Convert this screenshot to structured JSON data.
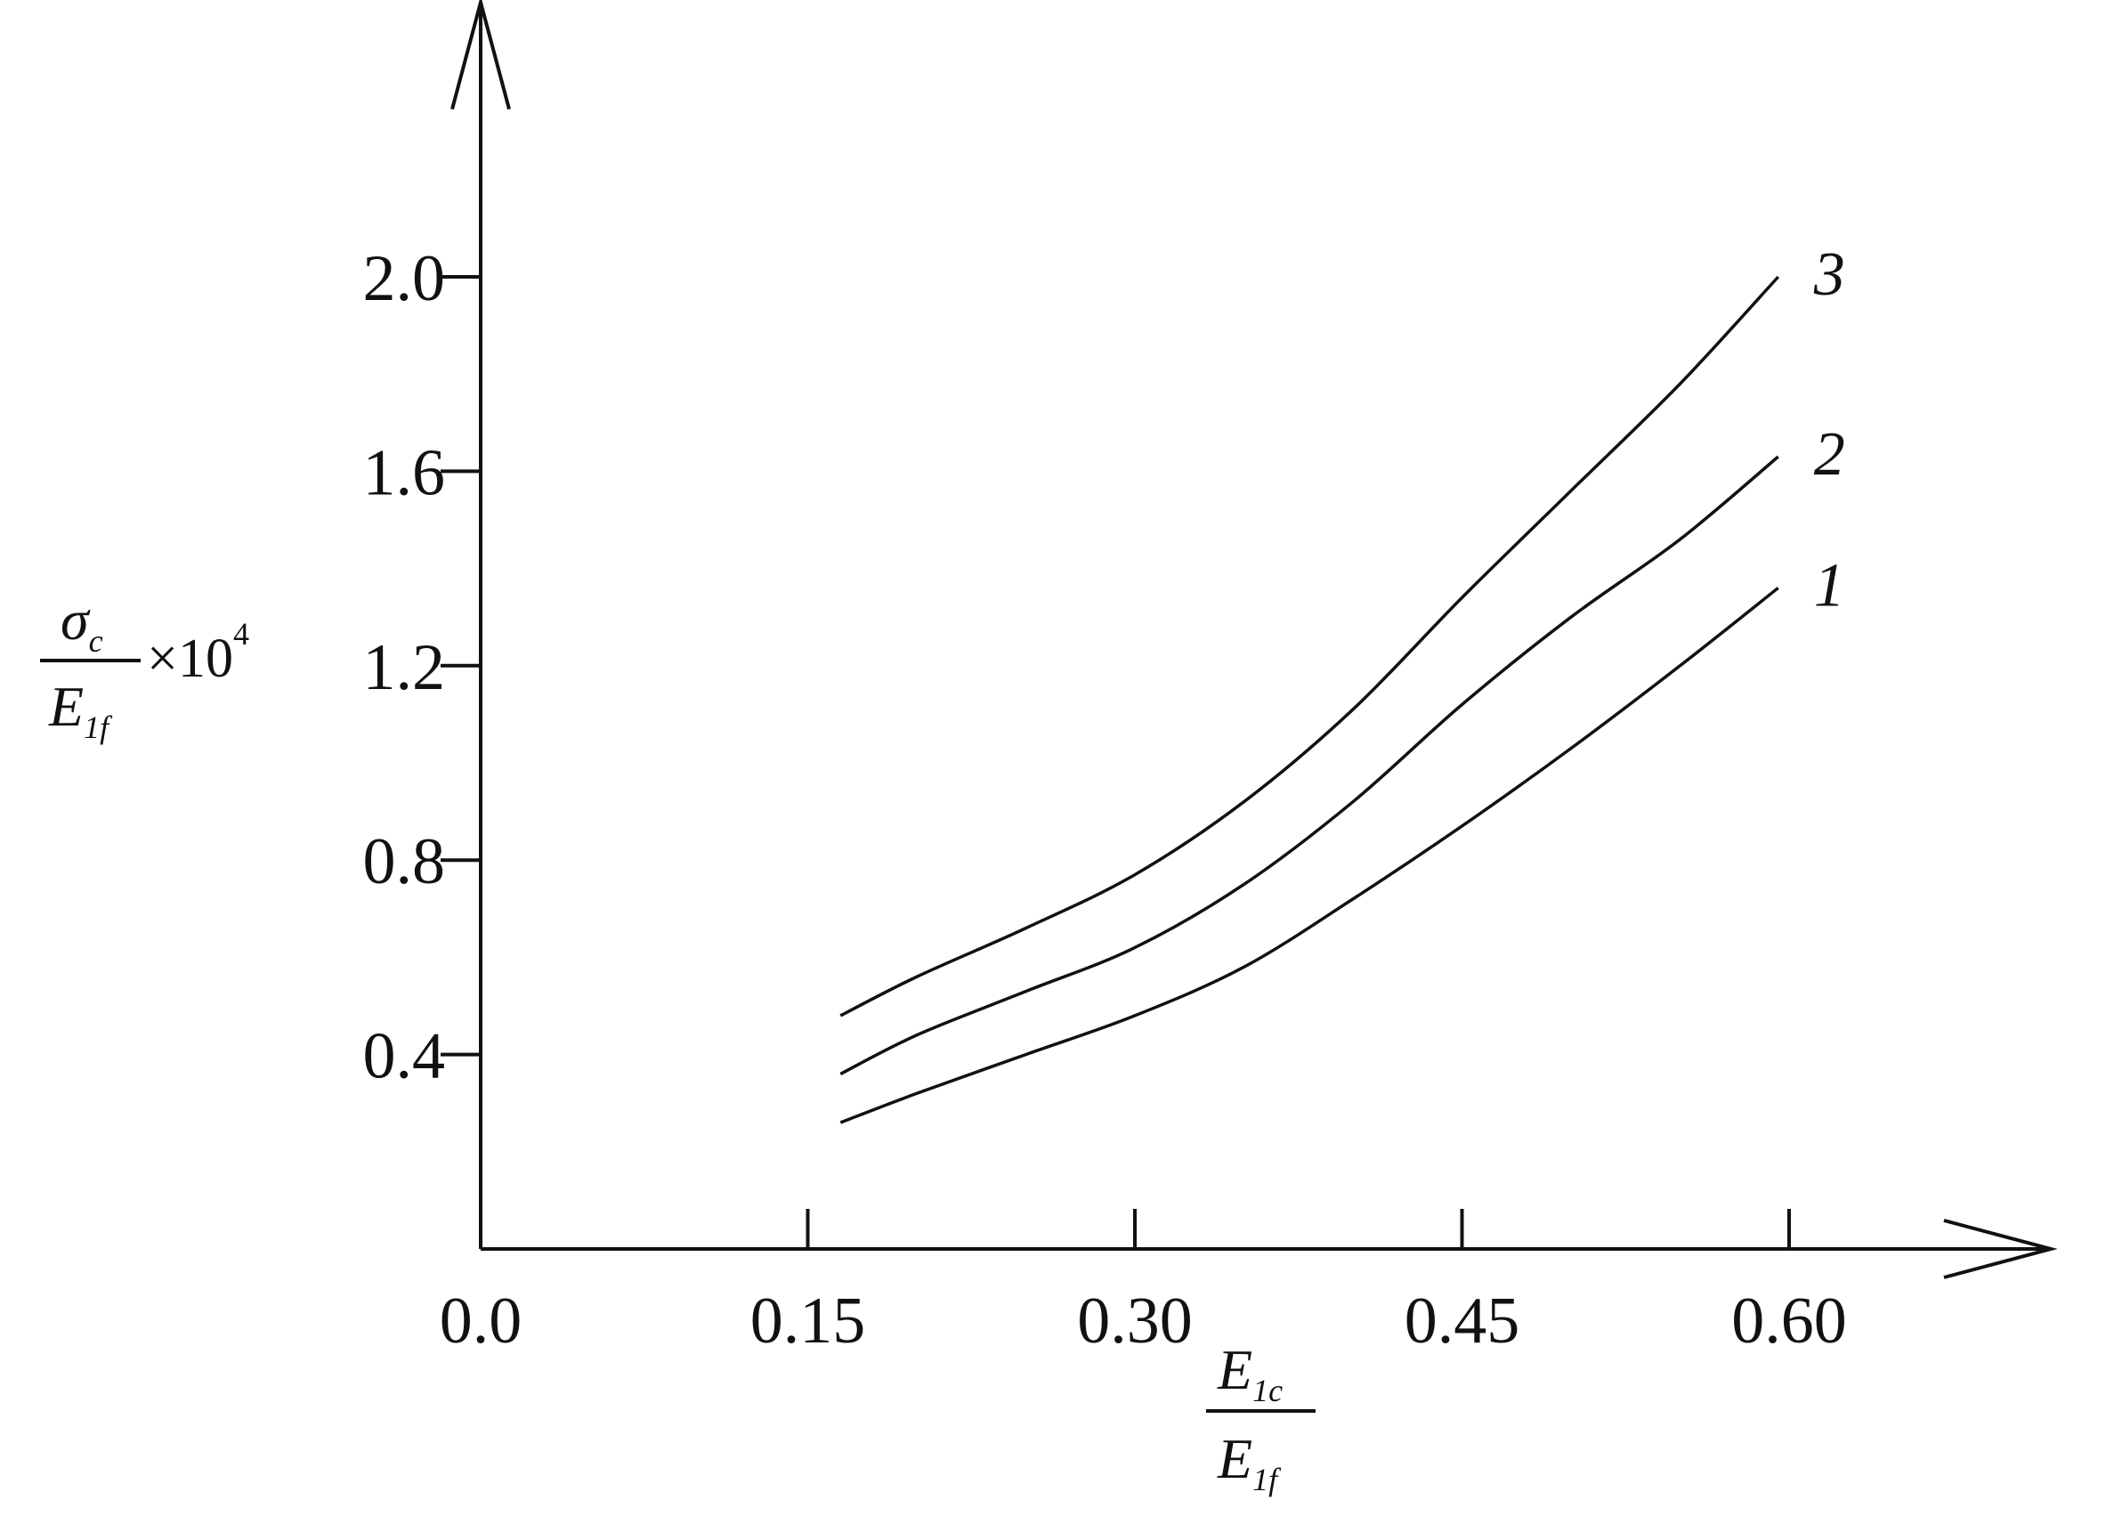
{
  "chart_data": {
    "type": "line",
    "x_ticks": [
      "0.0",
      "0.15",
      "0.30",
      "0.45",
      "0.60"
    ],
    "y_ticks": [
      "0.4",
      "0.8",
      "1.2",
      "1.6",
      "2.0"
    ],
    "x_tick_values": [
      0.0,
      0.15,
      0.3,
      0.45,
      0.6
    ],
    "y_tick_values": [
      0.4,
      0.8,
      1.2,
      1.6,
      2.0
    ],
    "xlim": [
      0.0,
      0.72
    ],
    "ylim": [
      0.0,
      2.4
    ],
    "grid": false,
    "xlabel": {
      "num_main": "E",
      "num_sub": "1c",
      "den_main": "E",
      "den_sub": "1f"
    },
    "ylabel": {
      "num_main": "σ",
      "num_sub": "c",
      "den_main": "E",
      "den_sub": "1f",
      "times": "×10",
      "exponent": "4"
    },
    "x": [
      0.165,
      0.2,
      0.25,
      0.3,
      0.35,
      0.4,
      0.45,
      0.5,
      0.55,
      0.595
    ],
    "series": [
      {
        "label": "1",
        "values": [
          0.26,
          0.32,
          0.4,
          0.48,
          0.58,
          0.72,
          0.87,
          1.03,
          1.2,
          1.36
        ]
      },
      {
        "label": "2",
        "values": [
          0.36,
          0.44,
          0.53,
          0.62,
          0.75,
          0.92,
          1.12,
          1.3,
          1.46,
          1.63
        ]
      },
      {
        "label": "3",
        "values": [
          0.48,
          0.56,
          0.66,
          0.77,
          0.92,
          1.11,
          1.34,
          1.56,
          1.78,
          2.0
        ]
      }
    ]
  }
}
